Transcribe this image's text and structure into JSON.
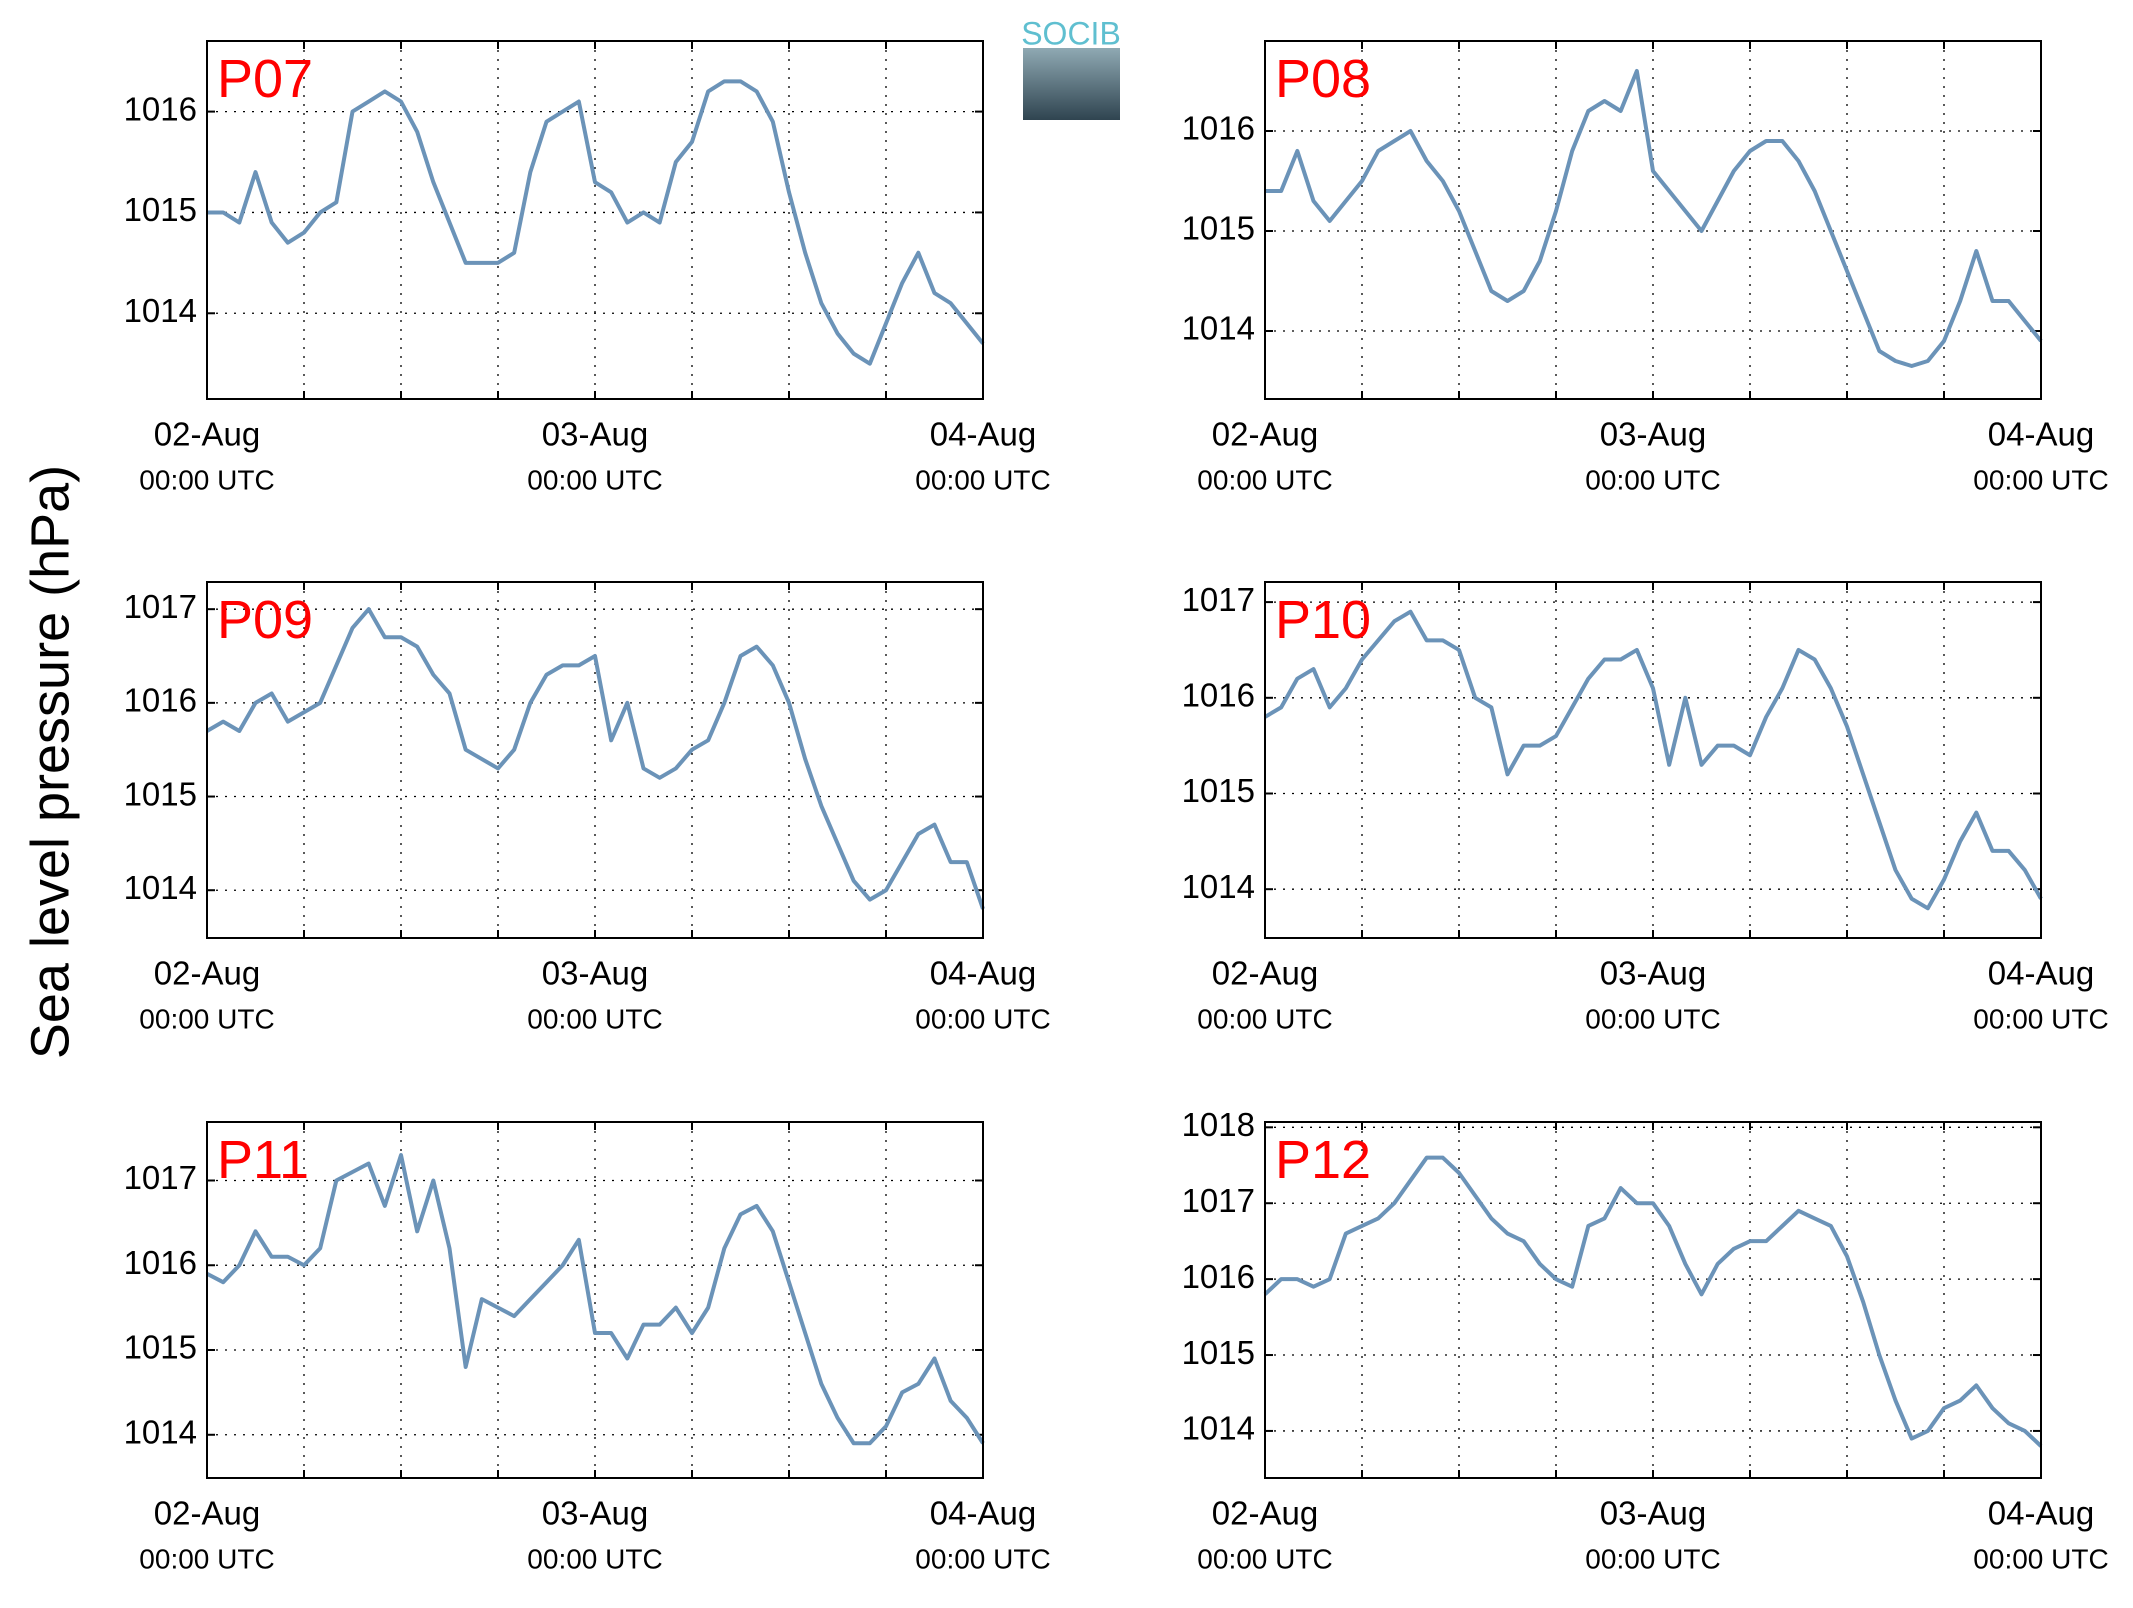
{
  "ylabel": "Sea level pressure (hPa)",
  "logo": "SOCIB",
  "chart_data": [
    {
      "type": "line",
      "title": "P07",
      "title_color": "#ff0000",
      "grid": true,
      "x": [
        0,
        1,
        2,
        3,
        4,
        5,
        6,
        7,
        8,
        9,
        10,
        11,
        12,
        13,
        14,
        15,
        16,
        17,
        18,
        19,
        20,
        21,
        22,
        23,
        24,
        25,
        26,
        27,
        28,
        29,
        30,
        31,
        32,
        33,
        34,
        35,
        36,
        37,
        38,
        39,
        40,
        41,
        42,
        43,
        44,
        45,
        46,
        47,
        48
      ],
      "series": [
        {
          "color": "#6b93b8",
          "values": [
            1015.0,
            1015.0,
            1014.9,
            1015.4,
            1014.9,
            1014.7,
            1014.8,
            1015.0,
            1015.1,
            1016.0,
            1016.1,
            1016.2,
            1016.1,
            1015.8,
            1015.3,
            1014.9,
            1014.5,
            1014.5,
            1014.5,
            1014.6,
            1015.4,
            1015.9,
            1016.0,
            1016.1,
            1015.3,
            1015.2,
            1014.9,
            1015.0,
            1014.9,
            1015.5,
            1015.7,
            1016.2,
            1016.3,
            1016.3,
            1016.2,
            1015.9,
            1015.2,
            1014.6,
            1014.1,
            1013.8,
            1013.6,
            1013.5,
            1013.9,
            1014.3,
            1014.6,
            1014.2,
            1014.1,
            1013.9,
            1013.7
          ]
        }
      ],
      "xlim": [
        0,
        48
      ],
      "xticks": [
        {
          "value": 0,
          "label": [
            "02-Aug",
            "00:00 UTC"
          ]
        },
        {
          "value": 6,
          "label": null
        },
        {
          "value": 12,
          "label": null
        },
        {
          "value": 18,
          "label": null
        },
        {
          "value": 24,
          "label": [
            "03-Aug",
            "00:00 UTC"
          ]
        },
        {
          "value": 30,
          "label": null
        },
        {
          "value": 36,
          "label": null
        },
        {
          "value": 42,
          "label": null
        },
        {
          "value": 48,
          "label": [
            "04-Aug",
            "00:00 UTC"
          ]
        }
      ],
      "ylim": [
        1013.15,
        1016.7
      ],
      "yticks": [
        1014,
        1015,
        1016
      ]
    },
    {
      "type": "line",
      "title": "P08",
      "title_color": "#ff0000",
      "grid": true,
      "x": [
        0,
        1,
        2,
        3,
        4,
        5,
        6,
        7,
        8,
        9,
        10,
        11,
        12,
        13,
        14,
        15,
        16,
        17,
        18,
        19,
        20,
        21,
        22,
        23,
        24,
        25,
        26,
        27,
        28,
        29,
        30,
        31,
        32,
        33,
        34,
        35,
        36,
        37,
        38,
        39,
        40,
        41,
        42,
        43,
        44,
        45,
        46,
        47,
        48
      ],
      "series": [
        {
          "color": "#6b93b8",
          "values": [
            1015.4,
            1015.4,
            1015.8,
            1015.3,
            1015.1,
            1015.3,
            1015.5,
            1015.8,
            1015.9,
            1016.0,
            1015.7,
            1015.5,
            1015.2,
            1014.8,
            1014.4,
            1014.3,
            1014.4,
            1014.7,
            1015.2,
            1015.8,
            1016.2,
            1016.3,
            1016.2,
            1016.6,
            1015.6,
            1015.4,
            1015.2,
            1015.0,
            1015.3,
            1015.6,
            1015.8,
            1015.9,
            1015.9,
            1015.7,
            1015.4,
            1015.0,
            1014.6,
            1014.2,
            1013.8,
            1013.7,
            1013.65,
            1013.7,
            1013.9,
            1014.3,
            1014.8,
            1014.3,
            1014.3,
            1014.1,
            1013.9
          ]
        }
      ],
      "xlim": [
        0,
        48
      ],
      "xticks": [
        {
          "value": 0,
          "label": [
            "02-Aug",
            "00:00 UTC"
          ]
        },
        {
          "value": 6,
          "label": null
        },
        {
          "value": 12,
          "label": null
        },
        {
          "value": 18,
          "label": null
        },
        {
          "value": 24,
          "label": [
            "03-Aug",
            "00:00 UTC"
          ]
        },
        {
          "value": 30,
          "label": null
        },
        {
          "value": 36,
          "label": null
        },
        {
          "value": 42,
          "label": null
        },
        {
          "value": 48,
          "label": [
            "04-Aug",
            "00:00 UTC"
          ]
        }
      ],
      "ylim": [
        1013.32,
        1016.9
      ],
      "yticks": [
        1014,
        1015,
        1016
      ]
    },
    {
      "type": "line",
      "title": "P09",
      "title_color": "#ff0000",
      "grid": true,
      "x": [
        0,
        1,
        2,
        3,
        4,
        5,
        6,
        7,
        8,
        9,
        10,
        11,
        12,
        13,
        14,
        15,
        16,
        17,
        18,
        19,
        20,
        21,
        22,
        23,
        24,
        25,
        26,
        27,
        28,
        29,
        30,
        31,
        32,
        33,
        34,
        35,
        36,
        37,
        38,
        39,
        40,
        41,
        42,
        43,
        44,
        45,
        46,
        47,
        48
      ],
      "series": [
        {
          "color": "#6b93b8",
          "values": [
            1015.7,
            1015.8,
            1015.7,
            1016.0,
            1016.1,
            1015.8,
            1015.9,
            1016.0,
            1016.4,
            1016.8,
            1017.0,
            1016.7,
            1016.7,
            1016.6,
            1016.3,
            1016.1,
            1015.5,
            1015.4,
            1015.3,
            1015.5,
            1016.0,
            1016.3,
            1016.4,
            1016.4,
            1016.5,
            1015.6,
            1016.0,
            1015.3,
            1015.2,
            1015.3,
            1015.5,
            1015.6,
            1016.0,
            1016.5,
            1016.6,
            1016.4,
            1016.0,
            1015.4,
            1014.9,
            1014.5,
            1014.1,
            1013.9,
            1014.0,
            1014.3,
            1014.6,
            1014.7,
            1014.3,
            1014.3,
            1013.8
          ]
        }
      ],
      "xlim": [
        0,
        48
      ],
      "xticks": [
        {
          "value": 0,
          "label": [
            "02-Aug",
            "00:00 UTC"
          ]
        },
        {
          "value": 6,
          "label": null
        },
        {
          "value": 12,
          "label": null
        },
        {
          "value": 18,
          "label": null
        },
        {
          "value": 24,
          "label": [
            "03-Aug",
            "00:00 UTC"
          ]
        },
        {
          "value": 30,
          "label": null
        },
        {
          "value": 36,
          "label": null
        },
        {
          "value": 42,
          "label": null
        },
        {
          "value": 48,
          "label": [
            "04-Aug",
            "00:00 UTC"
          ]
        }
      ],
      "ylim": [
        1013.49,
        1017.29
      ],
      "yticks": [
        1014,
        1015,
        1016,
        1017
      ]
    },
    {
      "type": "line",
      "title": "P10",
      "title_color": "#ff0000",
      "grid": true,
      "x": [
        0,
        1,
        2,
        3,
        4,
        5,
        6,
        7,
        8,
        9,
        10,
        11,
        12,
        13,
        14,
        15,
        16,
        17,
        18,
        19,
        20,
        21,
        22,
        23,
        24,
        25,
        26,
        27,
        28,
        29,
        30,
        31,
        32,
        33,
        34,
        35,
        36,
        37,
        38,
        39,
        40,
        41,
        42,
        43,
        44,
        45,
        46,
        47,
        48
      ],
      "series": [
        {
          "color": "#6b93b8",
          "values": [
            1015.8,
            1015.9,
            1016.2,
            1016.3,
            1015.9,
            1016.1,
            1016.4,
            1016.6,
            1016.8,
            1016.9,
            1016.6,
            1016.6,
            1016.5,
            1016.0,
            1015.9,
            1015.2,
            1015.5,
            1015.5,
            1015.6,
            1015.9,
            1016.2,
            1016.4,
            1016.4,
            1016.5,
            1016.1,
            1015.3,
            1016.0,
            1015.3,
            1015.5,
            1015.5,
            1015.4,
            1015.8,
            1016.1,
            1016.5,
            1016.4,
            1016.1,
            1015.7,
            1015.2,
            1014.7,
            1014.2,
            1013.9,
            1013.8,
            1014.1,
            1014.5,
            1014.8,
            1014.4,
            1014.4,
            1014.2,
            1013.9
          ]
        }
      ],
      "xlim": [
        0,
        48
      ],
      "xticks": [
        {
          "value": 0,
          "label": [
            "02-Aug",
            "00:00 UTC"
          ]
        },
        {
          "value": 6,
          "label": null
        },
        {
          "value": 12,
          "label": null
        },
        {
          "value": 18,
          "label": null
        },
        {
          "value": 24,
          "label": [
            "03-Aug",
            "00:00 UTC"
          ]
        },
        {
          "value": 30,
          "label": null
        },
        {
          "value": 36,
          "label": null
        },
        {
          "value": 42,
          "label": null
        },
        {
          "value": 48,
          "label": [
            "04-Aug",
            "00:00 UTC"
          ]
        }
      ],
      "ylim": [
        1013.49,
        1017.21
      ],
      "yticks": [
        1014,
        1015,
        1016,
        1017
      ]
    },
    {
      "type": "line",
      "title": "P11",
      "title_color": "#ff0000",
      "grid": true,
      "x": [
        0,
        1,
        2,
        3,
        4,
        5,
        6,
        7,
        8,
        9,
        10,
        11,
        12,
        13,
        14,
        15,
        16,
        17,
        18,
        19,
        20,
        21,
        22,
        23,
        24,
        25,
        26,
        27,
        28,
        29,
        30,
        31,
        32,
        33,
        34,
        35,
        36,
        37,
        38,
        39,
        40,
        41,
        42,
        43,
        44,
        45,
        46,
        47,
        48
      ],
      "series": [
        {
          "color": "#6b93b8",
          "values": [
            1015.9,
            1015.8,
            1016.0,
            1016.4,
            1016.1,
            1016.1,
            1016.0,
            1016.2,
            1017.0,
            1017.1,
            1017.2,
            1016.7,
            1017.3,
            1016.4,
            1017.0,
            1016.2,
            1014.8,
            1015.6,
            1015.5,
            1015.4,
            1015.6,
            1015.8,
            1016.0,
            1016.3,
            1015.2,
            1015.2,
            1014.9,
            1015.3,
            1015.3,
            1015.5,
            1015.2,
            1015.5,
            1016.2,
            1016.6,
            1016.7,
            1016.4,
            1015.8,
            1015.2,
            1014.6,
            1014.2,
            1013.9,
            1013.9,
            1014.1,
            1014.5,
            1014.6,
            1014.9,
            1014.4,
            1014.2,
            1013.9
          ]
        }
      ],
      "xlim": [
        0,
        48
      ],
      "xticks": [
        {
          "value": 0,
          "label": [
            "02-Aug",
            "00:00 UTC"
          ]
        },
        {
          "value": 6,
          "label": null
        },
        {
          "value": 12,
          "label": null
        },
        {
          "value": 18,
          "label": null
        },
        {
          "value": 24,
          "label": [
            "03-Aug",
            "00:00 UTC"
          ]
        },
        {
          "value": 30,
          "label": null
        },
        {
          "value": 36,
          "label": null
        },
        {
          "value": 42,
          "label": null
        },
        {
          "value": 48,
          "label": [
            "04-Aug",
            "00:00 UTC"
          ]
        }
      ],
      "ylim": [
        1013.49,
        1017.69
      ],
      "yticks": [
        1014,
        1015,
        1016,
        1017
      ]
    },
    {
      "type": "line",
      "title": "P12",
      "title_color": "#ff0000",
      "grid": true,
      "x": [
        0,
        1,
        2,
        3,
        4,
        5,
        6,
        7,
        8,
        9,
        10,
        11,
        12,
        13,
        14,
        15,
        16,
        17,
        18,
        19,
        20,
        21,
        22,
        23,
        24,
        25,
        26,
        27,
        28,
        29,
        30,
        31,
        32,
        33,
        34,
        35,
        36,
        37,
        38,
        39,
        40,
        41,
        42,
        43,
        44,
        45,
        46,
        47,
        48
      ],
      "series": [
        {
          "color": "#6b93b8",
          "values": [
            1015.8,
            1016.0,
            1016.0,
            1015.9,
            1016.0,
            1016.6,
            1016.7,
            1016.8,
            1017.0,
            1017.3,
            1017.6,
            1017.6,
            1017.4,
            1017.1,
            1016.8,
            1016.6,
            1016.5,
            1016.2,
            1016.0,
            1015.9,
            1016.7,
            1016.8,
            1017.2,
            1017.0,
            1017.0,
            1016.7,
            1016.2,
            1015.8,
            1016.2,
            1016.4,
            1016.5,
            1016.5,
            1016.7,
            1016.9,
            1016.8,
            1016.7,
            1016.3,
            1015.7,
            1015.0,
            1014.4,
            1013.9,
            1014.0,
            1014.3,
            1014.4,
            1014.6,
            1014.3,
            1014.1,
            1014.0,
            1013.8
          ]
        }
      ],
      "xlim": [
        0,
        48
      ],
      "xticks": [
        {
          "value": 0,
          "label": [
            "02-Aug",
            "00:00 UTC"
          ]
        },
        {
          "value": 6,
          "label": null
        },
        {
          "value": 12,
          "label": null
        },
        {
          "value": 18,
          "label": null
        },
        {
          "value": 24,
          "label": [
            "03-Aug",
            "00:00 UTC"
          ]
        },
        {
          "value": 30,
          "label": null
        },
        {
          "value": 36,
          "label": null
        },
        {
          "value": 42,
          "label": null
        },
        {
          "value": 48,
          "label": [
            "04-Aug",
            "00:00 UTC"
          ]
        }
      ],
      "ylim": [
        1013.38,
        1018.07
      ],
      "yticks": [
        1014,
        1015,
        1016,
        1017,
        1018
      ]
    }
  ]
}
